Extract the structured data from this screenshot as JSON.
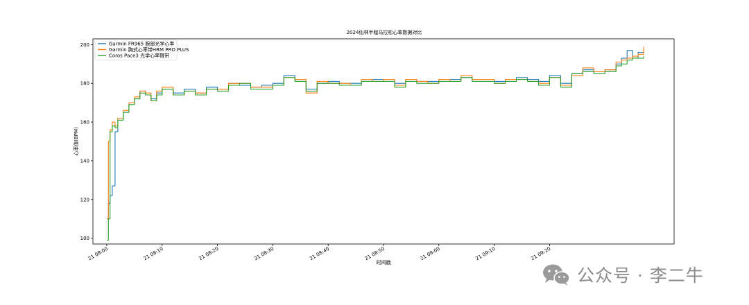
{
  "chart_data": {
    "type": "line",
    "title": "2024仙林半程马拉松心率数据对比",
    "xlabel": "时间戳",
    "ylabel": "心率值(BPM)",
    "ylim": [
      97,
      203
    ],
    "yticks": [
      100,
      120,
      140,
      160,
      180,
      200
    ],
    "xticks": [
      "21 08:00",
      "21 08:10",
      "21 08:20",
      "21 08:30",
      "21 08:40",
      "21 08:50",
      "21 09:00",
      "21 09:10",
      "21 09:20"
    ],
    "xrange_minutes": [
      -2.5,
      102.5
    ],
    "grid": false,
    "legend_position": "upper-left",
    "series": [
      {
        "name": "Garmin FR965 腕部光学心率",
        "color": "#1f77b4",
        "x_minutes": [
          0,
          0.3,
          0.6,
          1,
          1.5,
          2,
          3,
          4,
          5,
          6,
          7,
          8,
          9,
          10,
          12,
          14,
          16,
          18,
          20,
          22,
          24,
          26,
          28,
          30,
          32,
          34,
          36,
          38,
          40,
          42,
          44,
          46,
          48,
          50,
          52,
          54,
          56,
          58,
          60,
          62,
          64,
          66,
          68,
          70,
          72,
          74,
          76,
          78,
          80,
          82,
          84,
          86,
          88,
          90,
          92,
          93,
          94,
          95,
          96,
          97
        ],
        "y": [
          110,
          118,
          122,
          127,
          155,
          162,
          165,
          169,
          172,
          176,
          174,
          172,
          175,
          177,
          175,
          177,
          175,
          178,
          177,
          180,
          179,
          178,
          179,
          180,
          184,
          181,
          177,
          180,
          181,
          180,
          180,
          181,
          182,
          182,
          180,
          182,
          181,
          181,
          182,
          182,
          183,
          182,
          182,
          181,
          182,
          183,
          182,
          181,
          184,
          180,
          185,
          187,
          186,
          187,
          190,
          193,
          197,
          193,
          196,
          197
        ]
      },
      {
        "name": "Garmin 胸式心率带HRM PRO PLUS",
        "color": "#ff7f0e",
        "x_minutes": [
          0,
          0.3,
          0.6,
          1,
          1.5,
          2,
          3,
          4,
          5,
          6,
          7,
          8,
          9,
          10,
          12,
          14,
          16,
          18,
          20,
          22,
          24,
          26,
          28,
          30,
          32,
          34,
          36,
          38,
          40,
          42,
          44,
          46,
          48,
          50,
          52,
          54,
          56,
          58,
          60,
          62,
          64,
          66,
          68,
          70,
          72,
          74,
          76,
          78,
          80,
          82,
          84,
          86,
          88,
          90,
          92,
          93,
          94,
          95,
          96,
          97
        ],
        "y": [
          110,
          150,
          156,
          160,
          158,
          162,
          166,
          170,
          173,
          176,
          175,
          171,
          176,
          178,
          174,
          176,
          175,
          177,
          177,
          180,
          180,
          178,
          178,
          179,
          183,
          182,
          175,
          181,
          180,
          180,
          179,
          182,
          181,
          182,
          179,
          182,
          181,
          180,
          182,
          181,
          184,
          182,
          182,
          180,
          182,
          182,
          181,
          180,
          183,
          179,
          184,
          188,
          186,
          187,
          191,
          192,
          193,
          194,
          195,
          199
        ]
      },
      {
        "name": "Coros Pace3 光学心率臂带",
        "color": "#2ca02c",
        "x_minutes": [
          0,
          0.3,
          0.6,
          1,
          1.5,
          2,
          3,
          4,
          5,
          6,
          7,
          8,
          9,
          10,
          12,
          14,
          16,
          18,
          20,
          22,
          24,
          26,
          28,
          30,
          32,
          34,
          36,
          38,
          40,
          42,
          44,
          46,
          48,
          50,
          52,
          54,
          56,
          58,
          60,
          62,
          64,
          66,
          68,
          70,
          72,
          74,
          76,
          78,
          80,
          82,
          84,
          86,
          88,
          90,
          92,
          93,
          94,
          95,
          96,
          97
        ],
        "y": [
          99,
          110,
          155,
          158,
          157,
          161,
          165,
          169,
          172,
          175,
          174,
          171,
          174,
          177,
          174,
          176,
          174,
          177,
          176,
          179,
          180,
          177,
          177,
          179,
          183,
          181,
          176,
          180,
          180,
          179,
          179,
          181,
          181,
          181,
          178,
          181,
          180,
          180,
          181,
          181,
          183,
          181,
          181,
          180,
          181,
          182,
          181,
          179,
          183,
          178,
          185,
          186,
          185,
          186,
          189,
          190,
          192,
          193,
          193,
          194
        ]
      }
    ]
  },
  "watermark": {
    "icon": "wechat-icon",
    "text": "公众号 · 李二牛"
  }
}
